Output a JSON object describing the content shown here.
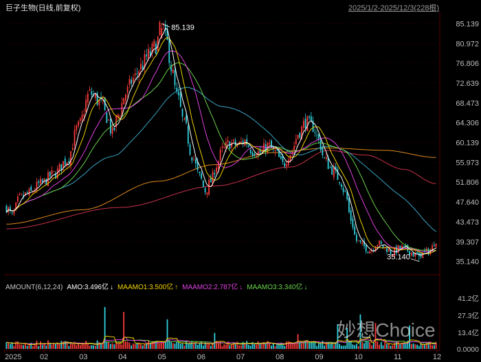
{
  "header": {
    "title": "巨子生物(日线,前复权)",
    "range": "2025/1/2-2025/12/3(228根)"
  },
  "indicator": {
    "name": "AMOUNT(6,12,24)",
    "amo": "AMO:3.496亿",
    "amo_arrow": "↓",
    "maamo1": "MAAMO1:3.500亿",
    "maamo1_arrow": "↑",
    "maamo2": "MAAMO2:2.787亿",
    "maamo2_arrow": "↓",
    "maamo3": "MAAMO3:3.340亿",
    "maamo3_arrow": "↓"
  },
  "watermark": "妙想Choice",
  "colors": {
    "background": "#000000",
    "up": "#ff3b3b",
    "down": "#31d2e0",
    "ma5": "#ffffff",
    "ma10": "#f0d200",
    "ma20": "#e040e0",
    "ma30": "#6ad24c",
    "ma60": "#3aa6c6",
    "ma120": "#e08a1e",
    "ma250": "#c8324a",
    "grid": "#3a0000"
  },
  "chart_data": {
    "type": "candlestick",
    "y_ticks": [
      "85.139",
      "80.972",
      "76.806",
      "72.639",
      "68.473",
      "64.306",
      "60.139",
      "55.973",
      "51.806",
      "47.640",
      "43.473",
      "39.307",
      "35.140"
    ],
    "ylim": [
      33.5,
      86.5
    ],
    "x_ticks": [
      "2025",
      "02",
      "03",
      "04",
      "05",
      "06",
      "07",
      "08",
      "09",
      "10",
      "11",
      "12"
    ],
    "annotations": [
      {
        "label": "85.139",
        "type": "high"
      },
      {
        "label": "35.140",
        "type": "low"
      }
    ],
    "close_anchors": [
      [
        0,
        46.5
      ],
      [
        3,
        44.8
      ],
      [
        7,
        48.5
      ],
      [
        12,
        49.5
      ],
      [
        18,
        51.5
      ],
      [
        25,
        53.5
      ],
      [
        32,
        56.5
      ],
      [
        38,
        63.5
      ],
      [
        44,
        70.5
      ],
      [
        50,
        68.5
      ],
      [
        53,
        65.5
      ],
      [
        56,
        62.0
      ],
      [
        59,
        66.0
      ],
      [
        63,
        70.5
      ],
      [
        67,
        73.5
      ],
      [
        71,
        76.0
      ],
      [
        75,
        78.5
      ],
      [
        79,
        80.5
      ],
      [
        82,
        85.0
      ],
      [
        85,
        81.0
      ],
      [
        87,
        76.0
      ],
      [
        90,
        70.0
      ],
      [
        94,
        64.0
      ],
      [
        98,
        57.5
      ],
      [
        102,
        53.0
      ],
      [
        105,
        50.0
      ],
      [
        108,
        52.0
      ],
      [
        111,
        55.5
      ],
      [
        114,
        58.5
      ],
      [
        118,
        60.0
      ],
      [
        122,
        59.5
      ],
      [
        126,
        60.5
      ],
      [
        130,
        58.5
      ],
      [
        134,
        58.0
      ],
      [
        138,
        59.5
      ],
      [
        142,
        58.0
      ],
      [
        146,
        55.5
      ],
      [
        150,
        58.0
      ],
      [
        155,
        62.5
      ],
      [
        158,
        64.5
      ],
      [
        162,
        63.5
      ],
      [
        165,
        60.5
      ],
      [
        168,
        56.5
      ],
      [
        172,
        54.5
      ],
      [
        176,
        52.5
      ],
      [
        179,
        49.5
      ],
      [
        182,
        44.0
      ],
      [
        185,
        39.5
      ],
      [
        188,
        38.5
      ],
      [
        192,
        37.5
      ],
      [
        196,
        39.0
      ],
      [
        200,
        38.0
      ],
      [
        204,
        37.0
      ],
      [
        208,
        38.0
      ],
      [
        212,
        37.5
      ],
      [
        216,
        36.5
      ],
      [
        220,
        36.8
      ],
      [
        224,
        37.5
      ],
      [
        227,
        39.8
      ]
    ],
    "ma120_anchors": [
      [
        0,
        43.0
      ],
      [
        40,
        46.0
      ],
      [
        80,
        52.0
      ],
      [
        110,
        55.5
      ],
      [
        140,
        58.0
      ],
      [
        170,
        59.0
      ],
      [
        200,
        58.5
      ],
      [
        227,
        57.0
      ]
    ],
    "ma250_anchors": [
      [
        0,
        42.0
      ],
      [
        60,
        46.5
      ],
      [
        110,
        51.0
      ],
      [
        150,
        55.0
      ],
      [
        170,
        58.5
      ],
      [
        190,
        57.5
      ],
      [
        210,
        54.5
      ],
      [
        227,
        51.5
      ]
    ],
    "volume_axis": {
      "ticks": [
        "41.2亿",
        "27.3亿",
        "13.4亿",
        "0.0000"
      ],
      "ylim": [
        0,
        41.2
      ],
      "unit": "亿"
    },
    "volume_spikes": [
      [
        52,
        34
      ],
      [
        62,
        30
      ],
      [
        85,
        24
      ],
      [
        110,
        13
      ],
      [
        154,
        12
      ],
      [
        175,
        20
      ],
      [
        180,
        17
      ],
      [
        187,
        28
      ],
      [
        195,
        21
      ],
      [
        213,
        19
      ]
    ]
  }
}
